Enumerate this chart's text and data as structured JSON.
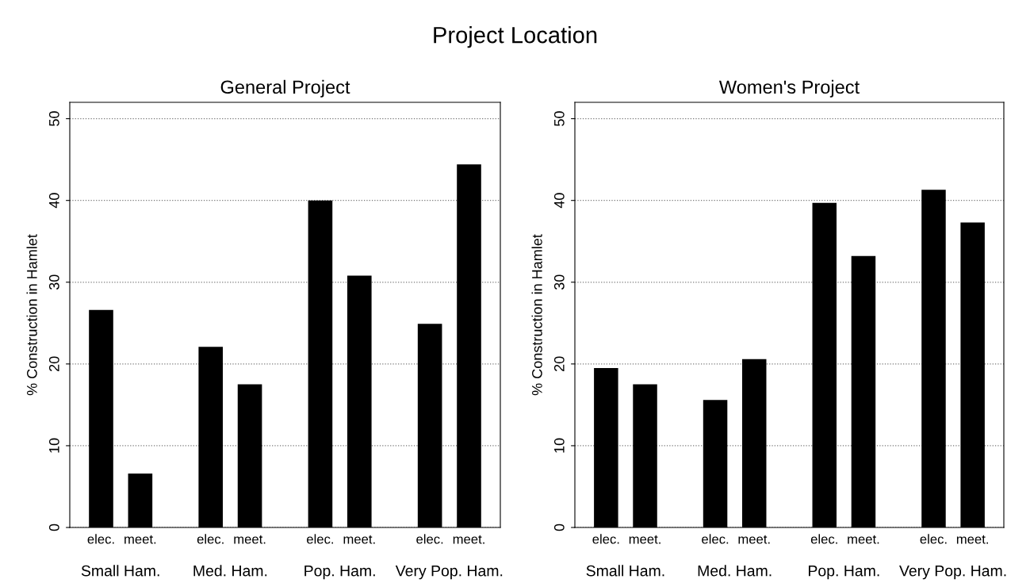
{
  "chart_data": [
    {
      "type": "bar",
      "title": "Project Location",
      "subtitle": "General Project",
      "ylabel": "% Construction in Hamlet",
      "categories": [
        "elec.",
        "meet.",
        "elec.",
        "meet.",
        "elec.",
        "meet.",
        "elec.",
        "meet."
      ],
      "values": [
        26.6,
        6.6,
        22.1,
        17.5,
        40.0,
        30.8,
        24.9,
        44.4
      ],
      "color": "#000000",
      "ylim": [
        0,
        52
      ],
      "yticks": [
        0,
        10,
        20,
        30,
        40,
        50
      ],
      "grid": "y",
      "annotations": [
        "Small Ham.",
        "Med. Ham.",
        "Pop. Ham.",
        "Very Pop. Ham."
      ]
    },
    {
      "type": "bar",
      "subtitle": "Women's Project",
      "ylabel": "% Construction in Hamlet",
      "categories": [
        "elec.",
        "meet.",
        "elec.",
        "meet.",
        "elec.",
        "meet.",
        "elec.",
        "meet."
      ],
      "values": [
        19.5,
        17.5,
        15.6,
        20.6,
        39.7,
        33.2,
        41.3,
        37.3
      ],
      "color": "#000000",
      "ylim": [
        0,
        52
      ],
      "yticks": [
        0,
        10,
        20,
        30,
        40,
        50
      ],
      "grid": "y",
      "annotations": [
        "Small Ham.",
        "Med. Ham.",
        "Pop. Ham.",
        "Very Pop. Ham."
      ]
    }
  ]
}
